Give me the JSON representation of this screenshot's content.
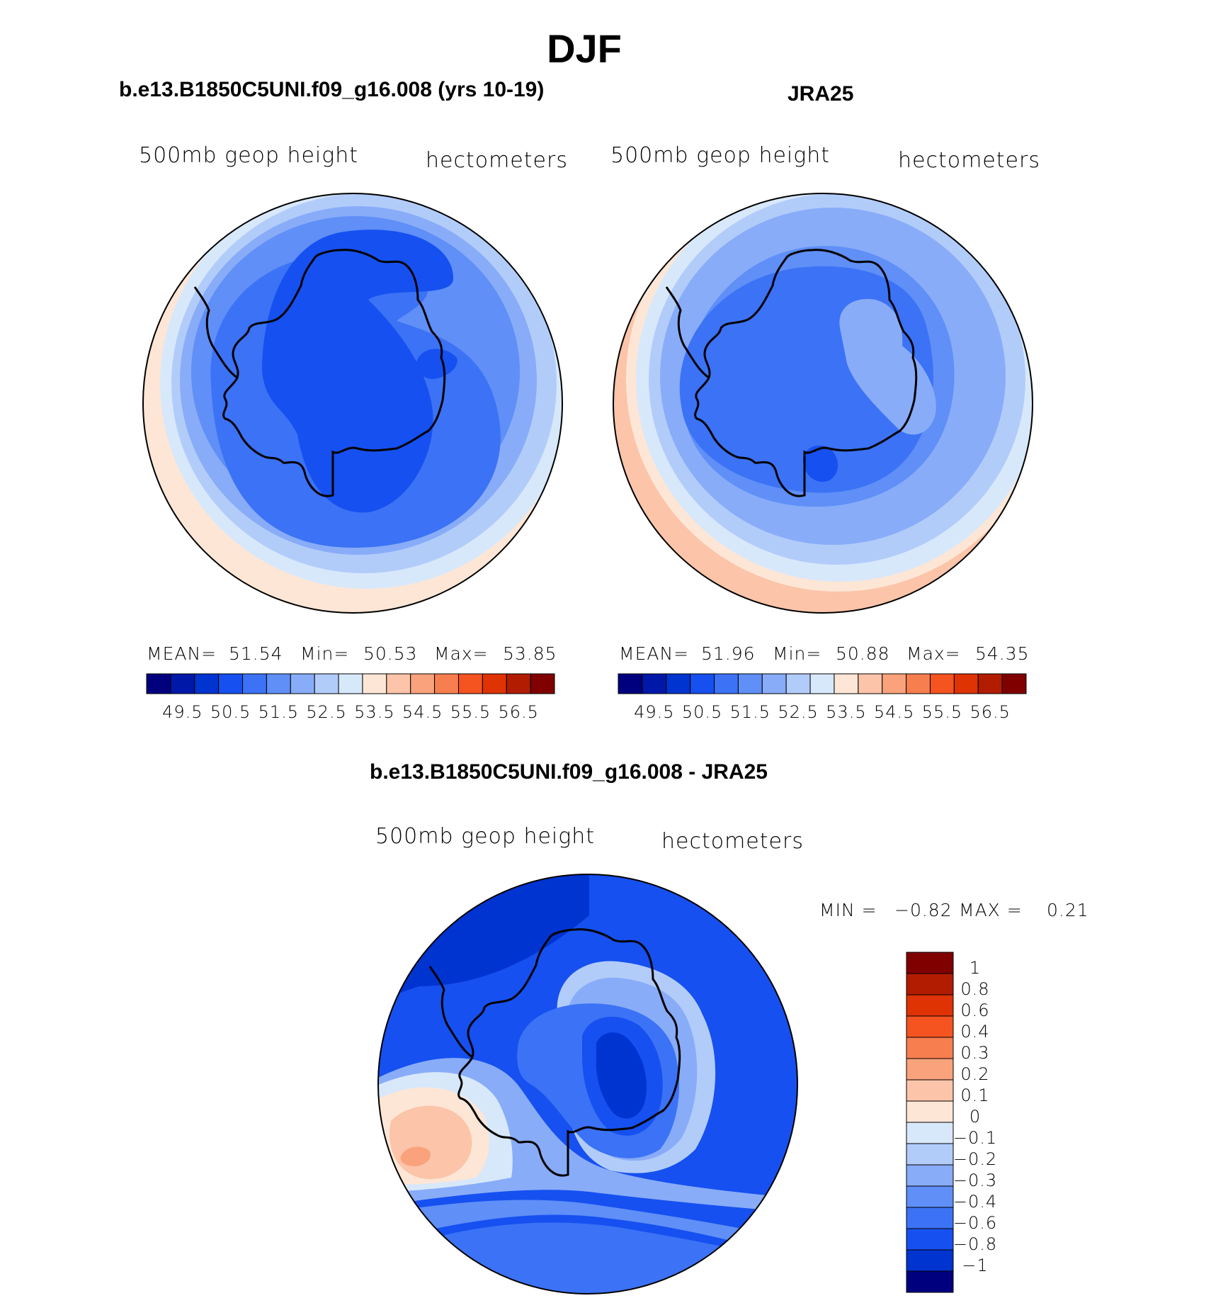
{
  "figure": {
    "title": "DJF"
  },
  "palette": [
    "#00007f",
    "#0018a8",
    "#0034d0",
    "#1650f0",
    "#3c72f5",
    "#5f8ff7",
    "#88acf8",
    "#b2ccfa",
    "#d8e8fb",
    "#fde6d6",
    "#fcc4a9",
    "#f9a27b",
    "#f77e4e",
    "#f5531f",
    "#df3303",
    "#b21c00",
    "#800000"
  ],
  "panels": [
    {
      "title": "b.e13.B1850C5UNI.f09_g16.008 (yrs 10-19)",
      "variable": "500mb geop height",
      "units": "hectometers",
      "stats": {
        "mean_label": "MEAN=",
        "mean": "51.54",
        "min_label": "Min=",
        "min": "50.53",
        "max_label": "Max=",
        "max": "53.85"
      }
    },
    {
      "title": "JRA25",
      "variable": "500mb geop height",
      "units": "hectometers",
      "stats": {
        "mean_label": "MEAN=",
        "mean": "51.96",
        "min_label": "Min=",
        "min": "50.88",
        "max_label": "Max=",
        "max": "54.35"
      }
    },
    {
      "title": "b.e13.B1850C5UNI.f09_g16.008 - JRA25",
      "variable": "500mb geop height",
      "units": "hectometers",
      "stats": {
        "min_label": "MIN =",
        "min": "−0.82",
        "max_label": "MAX =",
        "max": "0.21"
      }
    }
  ],
  "colorbar_horizontal": {
    "ticks": [
      "49.5",
      "50.5",
      "51.5",
      "52.5",
      "53.5",
      "54.5",
      "55.5",
      "56.5"
    ]
  },
  "colorbar_vertical": {
    "levels": [
      "1",
      "0.8",
      "0.6",
      "0.4",
      "0.3",
      "0.2",
      "0.1",
      "0",
      "−0.1",
      "−0.2",
      "−0.3",
      "−0.4",
      "−0.6",
      "−0.8",
      "−1"
    ]
  }
}
